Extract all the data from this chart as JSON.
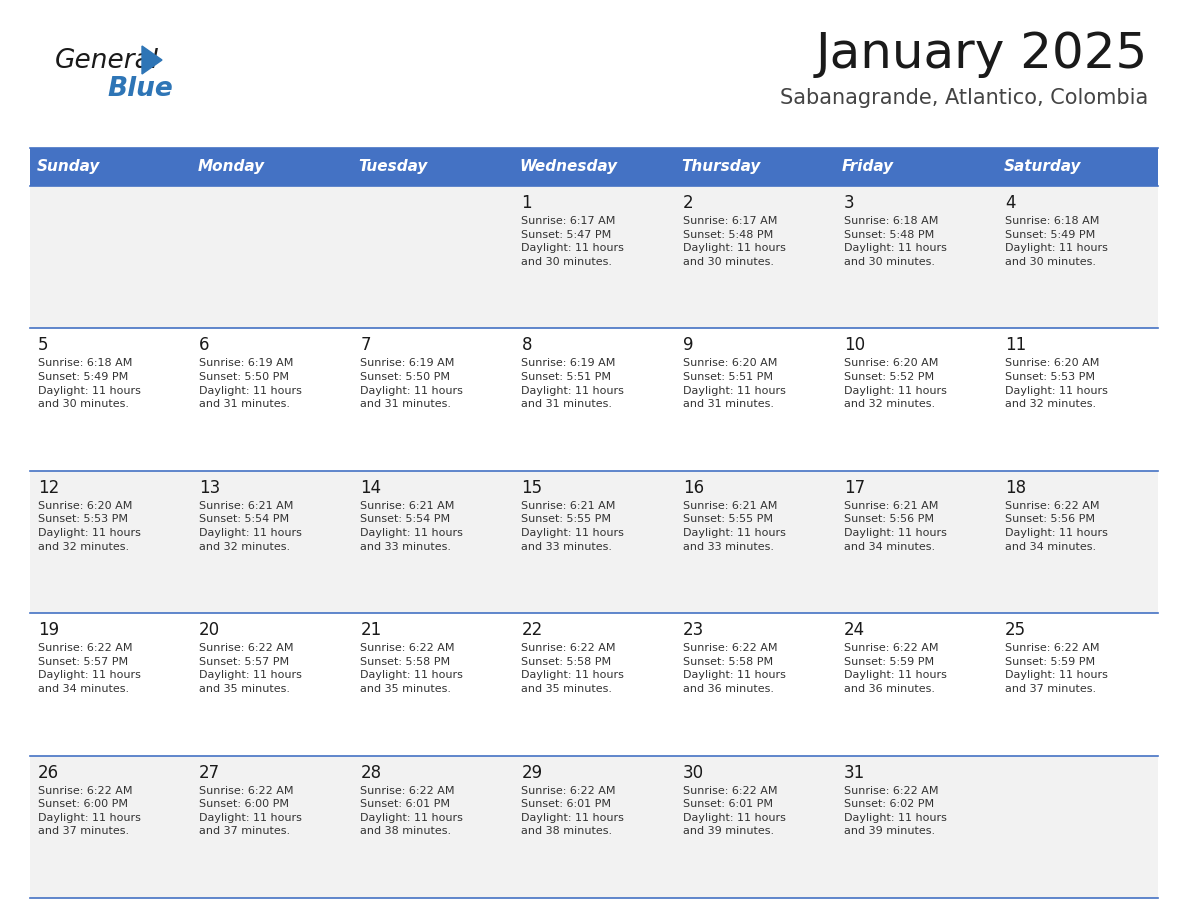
{
  "title": "January 2025",
  "subtitle": "Sabanagrande, Atlantico, Colombia",
  "header_bg_color": "#4472C4",
  "header_text_color": "#FFFFFF",
  "days_of_week": [
    "Sunday",
    "Monday",
    "Tuesday",
    "Wednesday",
    "Thursday",
    "Friday",
    "Saturday"
  ],
  "row_bg_even": "#F2F2F2",
  "row_bg_odd": "#FFFFFF",
  "day_number_color": "#1a1a1a",
  "info_text_color": "#333333",
  "separator_color": "#4472C4",
  "calendar": [
    [
      {
        "day": "",
        "info": ""
      },
      {
        "day": "",
        "info": ""
      },
      {
        "day": "",
        "info": ""
      },
      {
        "day": "1",
        "info": "Sunrise: 6:17 AM\nSunset: 5:47 PM\nDaylight: 11 hours\nand 30 minutes."
      },
      {
        "day": "2",
        "info": "Sunrise: 6:17 AM\nSunset: 5:48 PM\nDaylight: 11 hours\nand 30 minutes."
      },
      {
        "day": "3",
        "info": "Sunrise: 6:18 AM\nSunset: 5:48 PM\nDaylight: 11 hours\nand 30 minutes."
      },
      {
        "day": "4",
        "info": "Sunrise: 6:18 AM\nSunset: 5:49 PM\nDaylight: 11 hours\nand 30 minutes."
      }
    ],
    [
      {
        "day": "5",
        "info": "Sunrise: 6:18 AM\nSunset: 5:49 PM\nDaylight: 11 hours\nand 30 minutes."
      },
      {
        "day": "6",
        "info": "Sunrise: 6:19 AM\nSunset: 5:50 PM\nDaylight: 11 hours\nand 31 minutes."
      },
      {
        "day": "7",
        "info": "Sunrise: 6:19 AM\nSunset: 5:50 PM\nDaylight: 11 hours\nand 31 minutes."
      },
      {
        "day": "8",
        "info": "Sunrise: 6:19 AM\nSunset: 5:51 PM\nDaylight: 11 hours\nand 31 minutes."
      },
      {
        "day": "9",
        "info": "Sunrise: 6:20 AM\nSunset: 5:51 PM\nDaylight: 11 hours\nand 31 minutes."
      },
      {
        "day": "10",
        "info": "Sunrise: 6:20 AM\nSunset: 5:52 PM\nDaylight: 11 hours\nand 32 minutes."
      },
      {
        "day": "11",
        "info": "Sunrise: 6:20 AM\nSunset: 5:53 PM\nDaylight: 11 hours\nand 32 minutes."
      }
    ],
    [
      {
        "day": "12",
        "info": "Sunrise: 6:20 AM\nSunset: 5:53 PM\nDaylight: 11 hours\nand 32 minutes."
      },
      {
        "day": "13",
        "info": "Sunrise: 6:21 AM\nSunset: 5:54 PM\nDaylight: 11 hours\nand 32 minutes."
      },
      {
        "day": "14",
        "info": "Sunrise: 6:21 AM\nSunset: 5:54 PM\nDaylight: 11 hours\nand 33 minutes."
      },
      {
        "day": "15",
        "info": "Sunrise: 6:21 AM\nSunset: 5:55 PM\nDaylight: 11 hours\nand 33 minutes."
      },
      {
        "day": "16",
        "info": "Sunrise: 6:21 AM\nSunset: 5:55 PM\nDaylight: 11 hours\nand 33 minutes."
      },
      {
        "day": "17",
        "info": "Sunrise: 6:21 AM\nSunset: 5:56 PM\nDaylight: 11 hours\nand 34 minutes."
      },
      {
        "day": "18",
        "info": "Sunrise: 6:22 AM\nSunset: 5:56 PM\nDaylight: 11 hours\nand 34 minutes."
      }
    ],
    [
      {
        "day": "19",
        "info": "Sunrise: 6:22 AM\nSunset: 5:57 PM\nDaylight: 11 hours\nand 34 minutes."
      },
      {
        "day": "20",
        "info": "Sunrise: 6:22 AM\nSunset: 5:57 PM\nDaylight: 11 hours\nand 35 minutes."
      },
      {
        "day": "21",
        "info": "Sunrise: 6:22 AM\nSunset: 5:58 PM\nDaylight: 11 hours\nand 35 minutes."
      },
      {
        "day": "22",
        "info": "Sunrise: 6:22 AM\nSunset: 5:58 PM\nDaylight: 11 hours\nand 35 minutes."
      },
      {
        "day": "23",
        "info": "Sunrise: 6:22 AM\nSunset: 5:58 PM\nDaylight: 11 hours\nand 36 minutes."
      },
      {
        "day": "24",
        "info": "Sunrise: 6:22 AM\nSunset: 5:59 PM\nDaylight: 11 hours\nand 36 minutes."
      },
      {
        "day": "25",
        "info": "Sunrise: 6:22 AM\nSunset: 5:59 PM\nDaylight: 11 hours\nand 37 minutes."
      }
    ],
    [
      {
        "day": "26",
        "info": "Sunrise: 6:22 AM\nSunset: 6:00 PM\nDaylight: 11 hours\nand 37 minutes."
      },
      {
        "day": "27",
        "info": "Sunrise: 6:22 AM\nSunset: 6:00 PM\nDaylight: 11 hours\nand 37 minutes."
      },
      {
        "day": "28",
        "info": "Sunrise: 6:22 AM\nSunset: 6:01 PM\nDaylight: 11 hours\nand 38 minutes."
      },
      {
        "day": "29",
        "info": "Sunrise: 6:22 AM\nSunset: 6:01 PM\nDaylight: 11 hours\nand 38 minutes."
      },
      {
        "day": "30",
        "info": "Sunrise: 6:22 AM\nSunset: 6:01 PM\nDaylight: 11 hours\nand 39 minutes."
      },
      {
        "day": "31",
        "info": "Sunrise: 6:22 AM\nSunset: 6:02 PM\nDaylight: 11 hours\nand 39 minutes."
      },
      {
        "day": "",
        "info": ""
      }
    ]
  ],
  "logo_general_color": "#1a1a1a",
  "logo_blue_color": "#2E75B6",
  "logo_triangle_color": "#2E75B6",
  "title_fontsize": 36,
  "subtitle_fontsize": 15,
  "header_fontsize": 11,
  "day_number_fontsize": 12,
  "info_fontsize": 8
}
